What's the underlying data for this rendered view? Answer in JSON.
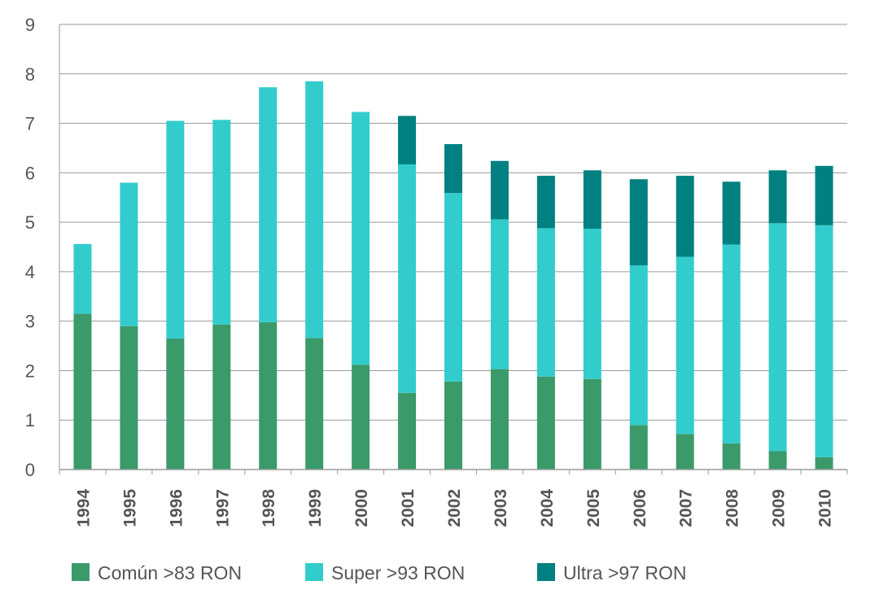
{
  "chart_data": {
    "type": "bar",
    "stacked": true,
    "title": "",
    "xlabel": "",
    "ylabel": "",
    "ylim": [
      0,
      9
    ],
    "yticks": [
      "0",
      "1",
      "2",
      "3",
      "4",
      "5",
      "6",
      "7",
      "8",
      "9"
    ],
    "grid": true,
    "legend_position": "bottom",
    "categories": [
      "1994",
      "1995",
      "1996",
      "1997",
      "1998",
      "1999",
      "2000",
      "2001",
      "2002",
      "2003",
      "2004",
      "2005",
      "2006",
      "2007",
      "2008",
      "2009",
      "2010"
    ],
    "series": [
      {
        "name": "Común >83 RON",
        "color": "#3a9a6a",
        "values": [
          3.15,
          2.9,
          2.65,
          2.93,
          2.98,
          2.66,
          2.12,
          1.55,
          1.78,
          2.03,
          1.88,
          1.83,
          0.9,
          0.72,
          0.53,
          0.37,
          0.25
        ]
      },
      {
        "name": "Super >93 RON",
        "color": "#33cccc",
        "values": [
          1.41,
          2.9,
          4.4,
          4.14,
          4.75,
          5.19,
          5.11,
          4.62,
          3.81,
          3.03,
          3.0,
          3.04,
          3.23,
          3.58,
          4.02,
          4.61,
          4.69
        ]
      },
      {
        "name": "Ultra >97 RON",
        "color": "#008080",
        "values": [
          0,
          0,
          0,
          0,
          0,
          0,
          0,
          0.98,
          0.99,
          1.18,
          1.06,
          1.18,
          1.74,
          1.64,
          1.27,
          1.07,
          1.2
        ]
      }
    ]
  }
}
